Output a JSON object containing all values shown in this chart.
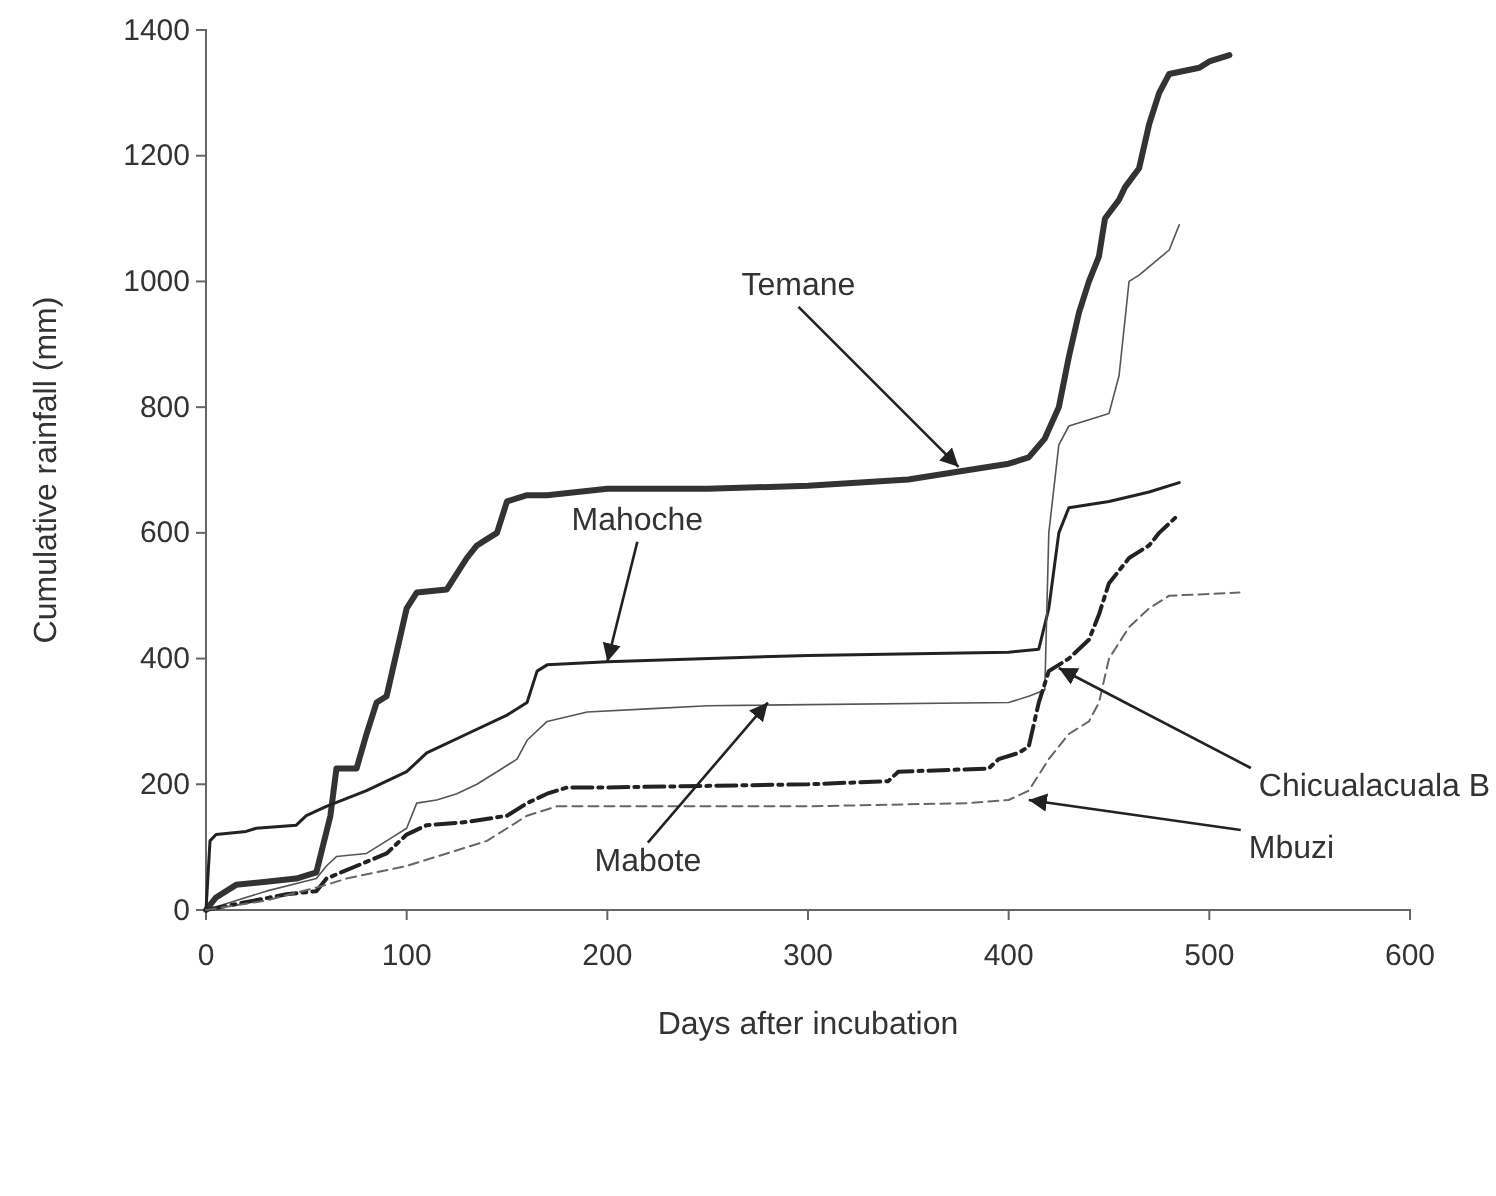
{
  "chart_data": {
    "type": "line",
    "xlabel": "Days after incubation",
    "ylabel": "Cumulative rainfall (mm)",
    "xlim": [
      0,
      600
    ],
    "xticks": [
      0,
      100,
      200,
      300,
      400,
      500,
      600
    ],
    "ylim": [
      0,
      1400
    ],
    "yticks": [
      0,
      200,
      400,
      600,
      800,
      1000,
      1200,
      1400
    ],
    "marker": "none",
    "series": [
      {
        "color": "#333333",
        "line_style": "solid",
        "x": [
          0,
          5,
          15,
          30,
          45,
          55,
          62,
          65,
          75,
          80,
          85,
          90,
          100,
          105,
          120,
          130,
          135,
          140,
          145,
          150,
          160,
          170,
          200,
          250,
          300,
          350,
          380,
          400,
          410,
          418,
          425,
          430,
          435,
          440,
          445,
          448,
          455,
          458,
          465,
          470,
          475,
          480,
          495,
          500,
          510
        ],
        "values": [
          0,
          20,
          40,
          45,
          50,
          60,
          150,
          225,
          225,
          280,
          330,
          340,
          480,
          505,
          510,
          560,
          580,
          590,
          600,
          650,
          660,
          660,
          670,
          670,
          675,
          685,
          700,
          710,
          720,
          750,
          800,
          880,
          950,
          1000,
          1040,
          1100,
          1130,
          1150,
          1180,
          1250,
          1300,
          1330,
          1340,
          1350,
          1360
        ]
      },
      {
        "color": "#222222",
        "line_style": "solid",
        "x": [
          0,
          2,
          5,
          20,
          25,
          45,
          50,
          60,
          80,
          100,
          110,
          130,
          150,
          160,
          165,
          170,
          200,
          300,
          400,
          415,
          420,
          425,
          430,
          450,
          470,
          485
        ],
        "values": [
          0,
          110,
          120,
          125,
          130,
          135,
          150,
          165,
          190,
          220,
          250,
          280,
          310,
          330,
          380,
          390,
          395,
          405,
          410,
          415,
          480,
          600,
          640,
          650,
          665,
          680
        ]
      },
      {
        "color": "#555555",
        "line_style": "solid",
        "x": [
          0,
          30,
          55,
          60,
          65,
          80,
          90,
          100,
          105,
          115,
          125,
          135,
          145,
          155,
          160,
          170,
          190,
          220,
          250,
          400,
          410,
          418,
          420,
          425,
          430,
          440,
          450,
          455,
          460,
          465,
          480,
          485
        ],
        "values": [
          0,
          30,
          50,
          70,
          85,
          90,
          110,
          130,
          170,
          175,
          185,
          200,
          220,
          240,
          270,
          300,
          315,
          320,
          325,
          330,
          340,
          350,
          600,
          740,
          770,
          780,
          790,
          850,
          1000,
          1010,
          1050,
          1090
        ]
      },
      {
        "color": "#222222",
        "line_style": "dashed",
        "x": [
          0,
          40,
          55,
          60,
          90,
          100,
          110,
          130,
          150,
          160,
          170,
          180,
          200,
          300,
          340,
          345,
          390,
          395,
          405,
          410,
          415,
          420,
          430,
          440,
          445,
          450,
          460,
          470,
          475,
          485
        ],
        "values": [
          0,
          25,
          30,
          50,
          90,
          120,
          135,
          140,
          150,
          170,
          185,
          195,
          195,
          200,
          205,
          220,
          225,
          240,
          250,
          260,
          330,
          380,
          400,
          430,
          470,
          520,
          560,
          580,
          600,
          630
        ]
      },
      {
        "color": "#666666",
        "line_style": "dotted",
        "x": [
          0,
          30,
          60,
          70,
          100,
          120,
          140,
          160,
          175,
          200,
          300,
          380,
          400,
          410,
          420,
          430,
          440,
          445,
          450,
          460,
          470,
          480,
          515
        ],
        "values": [
          0,
          15,
          40,
          50,
          70,
          90,
          110,
          150,
          165,
          165,
          165,
          170,
          175,
          190,
          240,
          280,
          300,
          330,
          400,
          450,
          480,
          500,
          505
        ]
      }
    ],
    "annotations": [
      {
        "text": "Temane",
        "x": 375,
        "y": 705
      },
      {
        "text": "Mahoche",
        "x": 200,
        "y": 395
      },
      {
        "text": "Mabote",
        "x": 280,
        "y": 330
      },
      {
        "text": "Chicualacuala  B",
        "x": 425,
        "y": 385
      },
      {
        "text": "Mbuzi",
        "x": 410,
        "y": 175
      }
    ]
  }
}
